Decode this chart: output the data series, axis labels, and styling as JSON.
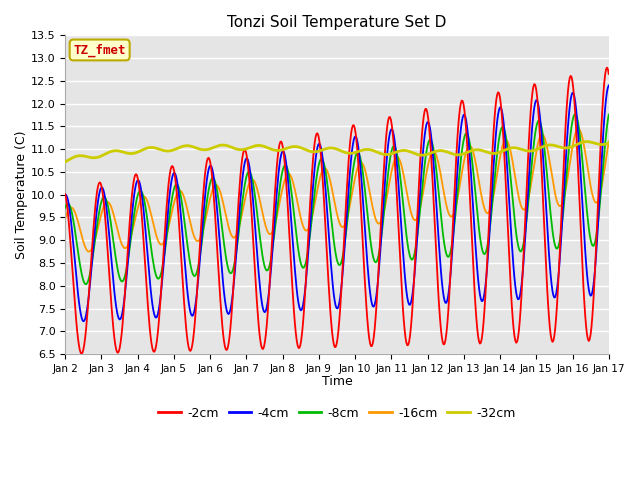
{
  "title": "Tonzi Soil Temperature Set D",
  "xlabel": "Time",
  "ylabel": "Soil Temperature (C)",
  "ylim": [
    6.5,
    13.5
  ],
  "xlim": [
    0,
    15
  ],
  "series_colors": {
    "-2cm": "#ff0000",
    "-4cm": "#0000ff",
    "-8cm": "#00bb00",
    "-16cm": "#ff9900",
    "-32cm": "#cccc00"
  },
  "legend_label": "TZ_fmet",
  "legend_box_facecolor": "#ffffcc",
  "legend_box_edgecolor": "#bbaa00",
  "legend_text_color": "#cc0000",
  "bg_color": "#e5e5e5",
  "grid_color": "#ffffff",
  "xtick_labels": [
    "Jan 2",
    "Jan 3",
    "Jan 4",
    "Jan 5",
    "Jan 6",
    "Jan 7",
    "Jan 8",
    "Jan 9",
    "Jan 10",
    "Jan 11",
    "Jan 12",
    "Jan 13",
    "Jan 14",
    "Jan 15",
    "Jan 16",
    "Jan 17"
  ],
  "xtick_positions": [
    0,
    1,
    2,
    3,
    4,
    5,
    6,
    7,
    8,
    9,
    10,
    11,
    12,
    13,
    14,
    15
  ],
  "ytick_positions": [
    6.5,
    7.0,
    7.5,
    8.0,
    8.5,
    9.0,
    9.5,
    10.0,
    10.5,
    11.0,
    11.5,
    12.0,
    12.5,
    13.0,
    13.5
  ],
  "n_points": 600
}
